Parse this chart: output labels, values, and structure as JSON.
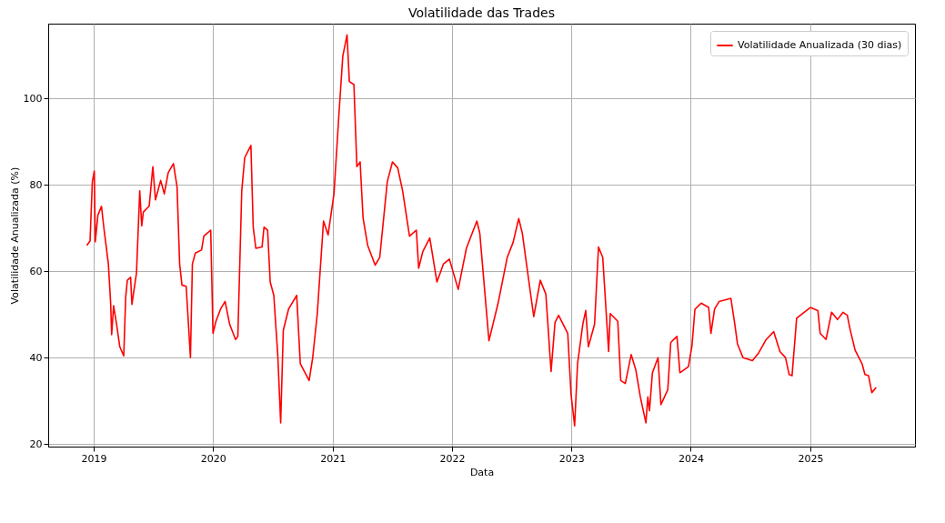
{
  "chart_data": {
    "type": "line",
    "title": "Volatilidade das Trades",
    "xlabel": "Data",
    "ylabel": "Volatilidade Anualizada (%)",
    "x": [
      "2018-12-12",
      "2018-12-21",
      "2018-12-28",
      "2019-01-03",
      "2019-01-06",
      "2019-01-14",
      "2019-01-25",
      "2019-02-01",
      "2019-02-15",
      "2019-02-22",
      "2019-02-25",
      "2019-03-03",
      "2019-03-12",
      "2019-03-22",
      "2019-04-03",
      "2019-04-09",
      "2019-04-14",
      "2019-04-24",
      "2019-04-28",
      "2019-05-12",
      "2019-05-22",
      "2019-05-28",
      "2019-06-02",
      "2019-06-20",
      "2019-07-01",
      "2019-07-09",
      "2019-07-25",
      "2019-08-05",
      "2019-08-17",
      "2019-09-02",
      "2019-09-13",
      "2019-09-21",
      "2019-09-28",
      "2019-10-11",
      "2019-10-24",
      "2019-10-30",
      "2019-11-08",
      "2019-11-27",
      "2019-12-04",
      "2019-12-25",
      "2020-01-01",
      "2020-01-10",
      "2020-01-24",
      "2020-02-07",
      "2020-02-21",
      "2020-03-10",
      "2020-03-17",
      "2020-03-29",
      "2020-04-07",
      "2020-04-26",
      "2020-05-03",
      "2020-05-11",
      "2020-05-30",
      "2020-06-05",
      "2020-06-16",
      "2020-06-24",
      "2020-07-05",
      "2020-07-17",
      "2020-07-26",
      "2020-08-03",
      "2020-08-19",
      "2020-09-13",
      "2020-09-24",
      "2020-10-21",
      "2020-11-01",
      "2020-11-15",
      "2020-12-04",
      "2020-12-18",
      "2021-01-05",
      "2021-01-20",
      "2021-02-01",
      "2021-02-14",
      "2021-02-21",
      "2021-03-07",
      "2021-03-16",
      "2021-03-26",
      "2021-04-04",
      "2021-04-18",
      "2021-05-11",
      "2021-05-25",
      "2021-06-17",
      "2021-07-03",
      "2021-07-19",
      "2021-08-03",
      "2021-08-24",
      "2021-09-14",
      "2021-09-21",
      "2021-10-04",
      "2021-10-25",
      "2021-11-16",
      "2021-12-06",
      "2021-12-24",
      "2022-01-20",
      "2022-02-14",
      "2022-03-18",
      "2022-03-27",
      "2022-04-24",
      "2022-05-22",
      "2022-06-19",
      "2022-07-07",
      "2022-07-24",
      "2022-08-04",
      "2022-08-30",
      "2022-09-08",
      "2022-09-28",
      "2022-10-15",
      "2022-10-31",
      "2022-11-12",
      "2022-11-23",
      "2022-12-21",
      "2022-12-31",
      "2023-01-11",
      "2023-01-20",
      "2023-02-05",
      "2023-02-14",
      "2023-02-22",
      "2023-03-13",
      "2023-03-25",
      "2023-04-07",
      "2023-04-25",
      "2023-04-30",
      "2023-05-23",
      "2023-06-01",
      "2023-06-15",
      "2023-07-03",
      "2023-07-17",
      "2023-07-31",
      "2023-08-17",
      "2023-08-23",
      "2023-08-28",
      "2023-09-06",
      "2023-09-23",
      "2023-10-02",
      "2023-10-23",
      "2023-11-01",
      "2023-11-20",
      "2023-11-29",
      "2023-12-25",
      "2024-01-05",
      "2024-01-14",
      "2024-02-02",
      "2024-02-25",
      "2024-03-03",
      "2024-03-14",
      "2024-03-28",
      "2024-05-03",
      "2024-05-15",
      "2024-05-23",
      "2024-06-09",
      "2024-07-08",
      "2024-07-27",
      "2024-08-19",
      "2024-09-11",
      "2024-09-30",
      "2024-10-17",
      "2024-10-28",
      "2024-11-06",
      "2024-11-20",
      "2024-12-13",
      "2025-01-01",
      "2025-01-24",
      "2025-01-31",
      "2025-02-18",
      "2025-03-07",
      "2025-03-25",
      "2025-04-11",
      "2025-04-24",
      "2025-05-02",
      "2025-05-18",
      "2025-06-08",
      "2025-06-17",
      "2025-06-28",
      "2025-07-08",
      "2025-07-20"
    ],
    "series": [
      {
        "name": "Volatilidade Anualizada (30 dias)",
        "color": "#ff0000",
        "values": [
          66.1,
          67,
          80.7,
          83.2,
          66.8,
          73,
          75,
          70.2,
          61.7,
          52.6,
          45.3,
          52,
          47.8,
          42.5,
          40.4,
          54,
          57.9,
          58.6,
          52.3,
          59.6,
          78.6,
          70.5,
          73.7,
          75.1,
          84.2,
          76.5,
          81,
          77.9,
          82.8,
          84.9,
          79.6,
          61.7,
          56.8,
          56.5,
          40,
          61.7,
          64.2,
          64.9,
          68.1,
          69.5,
          45.6,
          48.4,
          51.2,
          53,
          47.7,
          44.2,
          44.9,
          78.6,
          86.3,
          89.1,
          70.2,
          65.3,
          65.6,
          70.2,
          69.5,
          57.5,
          54.4,
          40.7,
          24.9,
          46.3,
          51.2,
          54.4,
          38.6,
          34.7,
          40,
          50.2,
          71.6,
          68.4,
          77.9,
          96.1,
          109.8,
          114.7,
          103.9,
          103.2,
          84.2,
          85.3,
          72.3,
          66,
          61.4,
          63.2,
          80.7,
          85.3,
          83.9,
          78.6,
          68.1,
          69.5,
          60.7,
          64.6,
          67.7,
          57.5,
          61.7,
          62.8,
          55.8,
          65.3,
          71.6,
          68.8,
          43.9,
          52.6,
          63.2,
          66.7,
          72.2,
          68.8,
          54.4,
          49.5,
          57.9,
          54.7,
          36.8,
          48.1,
          49.8,
          45.6,
          31.6,
          24.2,
          38.6,
          47.7,
          50.9,
          42.5,
          47.7,
          65.6,
          63.2,
          41.4,
          50.2,
          48.4,
          34.7,
          34,
          40.7,
          37.2,
          30.9,
          24.9,
          30.9,
          27.7,
          36.5,
          40,
          29.1,
          32.6,
          43.5,
          44.9,
          36.5,
          37.9,
          42.8,
          51.2,
          52.6,
          51.6,
          45.6,
          51.2,
          53,
          53.7,
          47.7,
          43.2,
          40,
          39.3,
          41.1,
          44.2,
          46,
          41.4,
          40,
          36.1,
          35.8,
          49.1,
          50.5,
          51.6,
          50.9,
          45.6,
          44.2,
          50.5,
          48.8,
          50.5,
          49.8,
          46.7,
          41.7,
          38.6,
          36.1,
          35.8,
          31.9,
          33
        ]
      }
    ],
    "xlim": [
      "2018-08-15",
      "2025-11-17"
    ],
    "xticks": [
      {
        "value": "2019",
        "label": "2019"
      },
      {
        "value": "2020",
        "label": "2020"
      },
      {
        "value": "2021",
        "label": "2021"
      },
      {
        "value": "2022",
        "label": "2022"
      },
      {
        "value": "2023",
        "label": "2023"
      },
      {
        "value": "2024",
        "label": "2024"
      },
      {
        "value": "2025",
        "label": "2025"
      }
    ],
    "ylim": [
      19.4,
      117.3
    ],
    "yticks": [
      20,
      40,
      60,
      80,
      100
    ],
    "grid": true,
    "legend": "top right",
    "marker": "none",
    "line_style": "solid"
  }
}
